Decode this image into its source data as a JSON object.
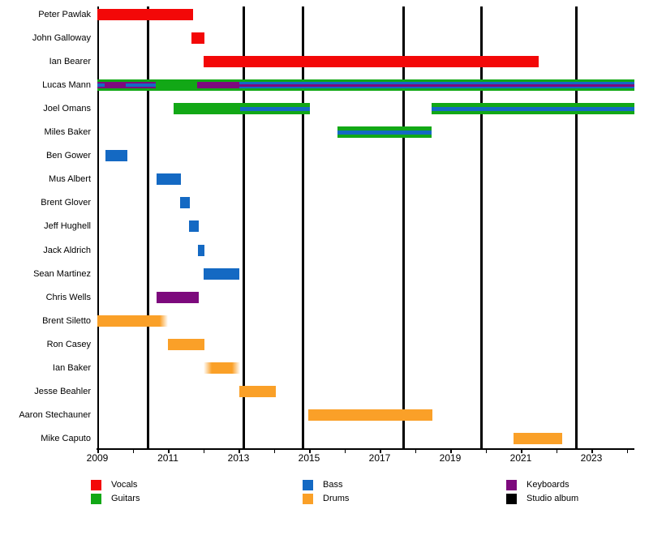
{
  "chart_data": {
    "type": "gantt-timeline",
    "description": "Band members timeline: colored bars show each member's role tenure; vertical black lines mark studio album releases",
    "x_axis": {
      "start": 2009,
      "end": 2024.22,
      "tick_every_years": 1,
      "year_labels": [
        "2009",
        "2011",
        "2013",
        "2015",
        "2017",
        "2019",
        "2021",
        "2023"
      ]
    },
    "roles": {
      "vocals": "#f30808",
      "guitars": "#12a816",
      "bass": "#1469c3",
      "drums": "#faa028",
      "keyboards": "#7d0a7d"
    },
    "album_release_lines": [
      2010.43,
      2013.14,
      2014.82,
      2017.67,
      2019.89,
      2022.58
    ],
    "members": [
      {
        "name": "Peter Pawlak",
        "bars": [
          {
            "role": "vocals",
            "start": 2009.0,
            "end": 2011.71,
            "h": 14
          }
        ]
      },
      {
        "name": "John Galloway",
        "bars": [
          {
            "role": "vocals",
            "start": 2011.67,
            "end": 2012.03,
            "h": 14
          }
        ]
      },
      {
        "name": "Ian Bearer",
        "bars": [
          {
            "role": "vocals",
            "start": 2012.01,
            "end": 2021.51,
            "h": 14
          }
        ]
      },
      {
        "name": "Lucas Mann",
        "bars": [
          {
            "role": "guitars",
            "start": 2009.0,
            "end": 2024.22,
            "h": 14
          },
          {
            "role": "keyboards",
            "start": 2009.0,
            "end": 2010.66,
            "h": 8
          },
          {
            "role": "bass",
            "start": 2009.0,
            "end": 2009.21,
            "h": 4
          },
          {
            "role": "bass",
            "start": 2009.8,
            "end": 2010.66,
            "h": 4
          },
          {
            "role": "keyboards",
            "start": 2011.83,
            "end": 2024.22,
            "h": 8
          },
          {
            "role": "bass",
            "start": 2013.02,
            "end": 2024.22,
            "h": 8
          },
          {
            "role": "keyboards",
            "start": 2013.02,
            "end": 2024.22,
            "h": 3
          }
        ]
      },
      {
        "name": "Joel Omans",
        "bars": [
          {
            "role": "guitars",
            "start": 2011.16,
            "end": 2015.02,
            "h": 14
          },
          {
            "role": "bass",
            "start": 2013.05,
            "end": 2015.02,
            "h": 5
          },
          {
            "role": "guitars",
            "start": 2018.47,
            "end": 2024.22,
            "h": 14
          },
          {
            "role": "bass",
            "start": 2018.47,
            "end": 2024.22,
            "h": 5
          }
        ]
      },
      {
        "name": "Miles Baker",
        "bars": [
          {
            "role": "guitars",
            "start": 2015.8,
            "end": 2018.47,
            "h": 14
          },
          {
            "role": "bass",
            "start": 2015.8,
            "end": 2018.47,
            "h": 5
          }
        ]
      },
      {
        "name": "Ben Gower",
        "bars": [
          {
            "role": "bass",
            "start": 2009.23,
            "end": 2009.85,
            "h": 14
          }
        ]
      },
      {
        "name": "Mus Albert",
        "bars": [
          {
            "role": "bass",
            "start": 2010.68,
            "end": 2011.37,
            "h": 14
          }
        ]
      },
      {
        "name": "Brent Glover",
        "bars": [
          {
            "role": "bass",
            "start": 2011.34,
            "end": 2011.62,
            "h": 14
          }
        ]
      },
      {
        "name": "Jeff Hughell",
        "bars": [
          {
            "role": "bass",
            "start": 2011.6,
            "end": 2011.87,
            "h": 14
          }
        ]
      },
      {
        "name": "Jack Aldrich",
        "bars": [
          {
            "role": "bass",
            "start": 2011.85,
            "end": 2012.03,
            "h": 14
          }
        ]
      },
      {
        "name": "Sean Martinez",
        "bars": [
          {
            "role": "bass",
            "start": 2012.01,
            "end": 2013.02,
            "h": 14
          }
        ]
      },
      {
        "name": "Chris Wells",
        "bars": [
          {
            "role": "keyboards",
            "start": 2010.68,
            "end": 2011.87,
            "h": 14
          }
        ]
      },
      {
        "name": "Brent Siletto",
        "bars": [
          {
            "role": "drums",
            "start": 2009.0,
            "end": 2011.0,
            "h": 14,
            "fade": "right"
          }
        ]
      },
      {
        "name": "Ron Casey",
        "bars": [
          {
            "role": "drums",
            "start": 2011.0,
            "end": 2012.03,
            "h": 14
          }
        ]
      },
      {
        "name": "Ian Baker",
        "bars": [
          {
            "role": "drums",
            "start": 2012.01,
            "end": 2013.05,
            "h": 14,
            "fade": "both"
          }
        ]
      },
      {
        "name": "Jesse Beahler",
        "bars": [
          {
            "role": "drums",
            "start": 2013.02,
            "end": 2014.06,
            "h": 14
          }
        ]
      },
      {
        "name": "Aaron Stechauner",
        "bars": [
          {
            "role": "drums",
            "start": 2014.98,
            "end": 2018.49,
            "h": 14
          }
        ]
      },
      {
        "name": "Mike Caputo",
        "bars": [
          {
            "role": "drums",
            "start": 2020.79,
            "end": 2022.17,
            "h": 14
          }
        ]
      }
    ]
  },
  "legend": {
    "items": [
      {
        "label": "Vocals",
        "color": "#f30808"
      },
      {
        "label": "Guitars",
        "color": "#12a816"
      },
      {
        "label": "Bass",
        "color": "#1469c3"
      },
      {
        "label": "Drums",
        "color": "#faa028"
      },
      {
        "label": "Keyboards",
        "color": "#7d0a7d"
      },
      {
        "label": "Studio album",
        "color": "#000000"
      }
    ]
  }
}
